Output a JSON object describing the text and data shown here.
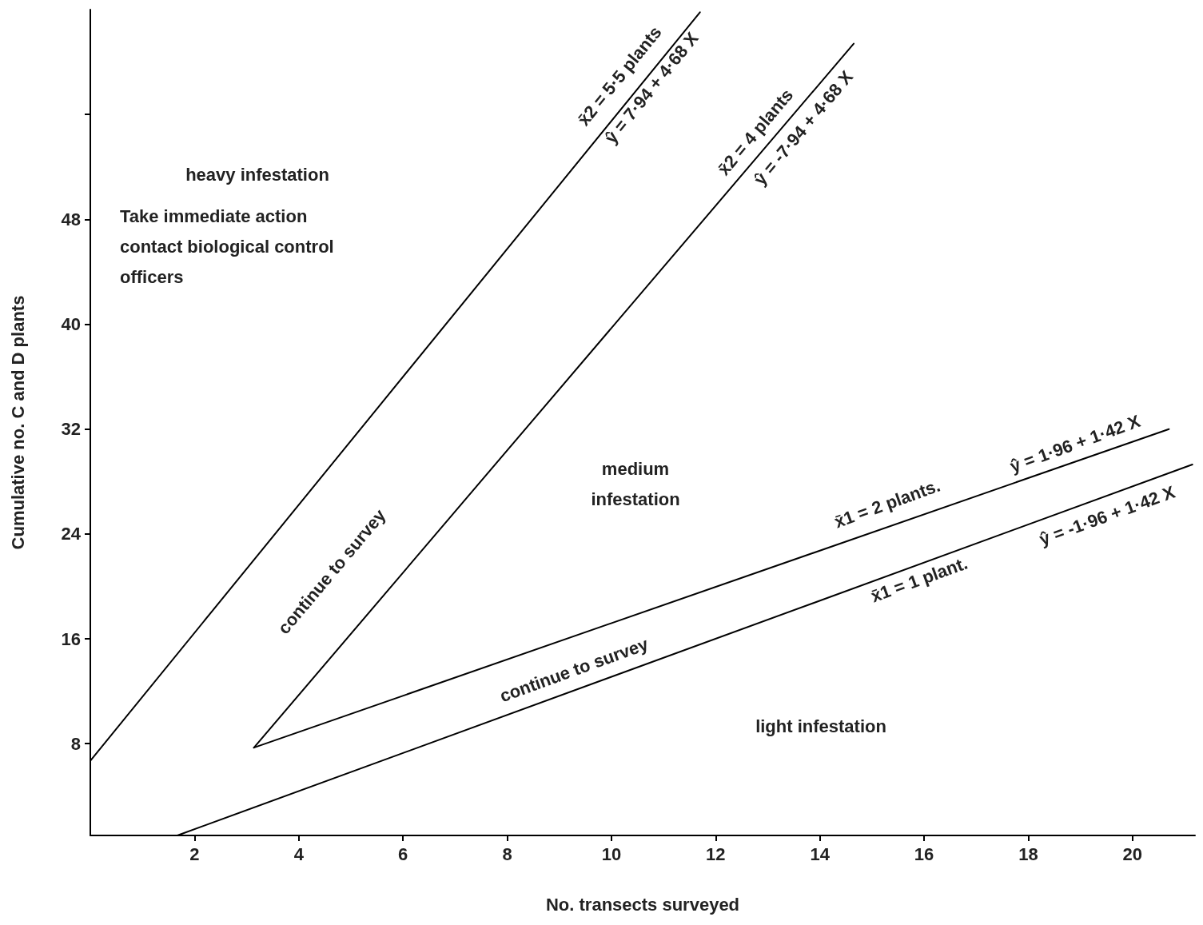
{
  "chart_data": {
    "type": "line",
    "xlabel": "No. transects surveyed",
    "ylabel": "Cumulative no. C and D plants",
    "xlim": [
      0,
      21.2
    ],
    "xticks": [
      2,
      4,
      6,
      8,
      10,
      12,
      14,
      16,
      18,
      20
    ],
    "ylim": [
      1,
      64
    ],
    "yticks": [
      8,
      16,
      24,
      32,
      40,
      48,
      {
        "value": 56,
        "label": null
      }
    ],
    "grid": false,
    "marker": "none",
    "line_style": "solid",
    "series": [
      {
        "color": "#000000",
        "x": [
          0,
          11.7
        ],
        "values": [
          6.7,
          63.8
        ]
      },
      {
        "color": "#000000",
        "x": [
          3.14,
          14.65
        ],
        "values": [
          7.7,
          61.4
        ]
      },
      {
        "color": "#000000",
        "x": [
          3.14,
          20.7
        ],
        "values": [
          7.7,
          32.0
        ]
      },
      {
        "color": "#000000",
        "x": [
          1.67,
          21.15
        ],
        "values": [
          1.0,
          29.3
        ]
      }
    ],
    "annotations": [
      "x̄2 = 5·5 plants",
      "ŷ = 7·94 + 4·68 X",
      "x̄2 = 4 plants",
      "ŷ = -7·94 + 4·68 X",
      "continue to survey",
      "x̄1 = 2 plants.",
      "ŷ = 1·96 + 1·42 X",
      "x̄1 = 1 plant.",
      "ŷ = -1·96 + 1·42 X",
      "continue to survey",
      "heavy infestation",
      "Take immediate action\ncontact biological control\nofficers",
      "medium\ninfestation",
      "light infestation"
    ]
  }
}
